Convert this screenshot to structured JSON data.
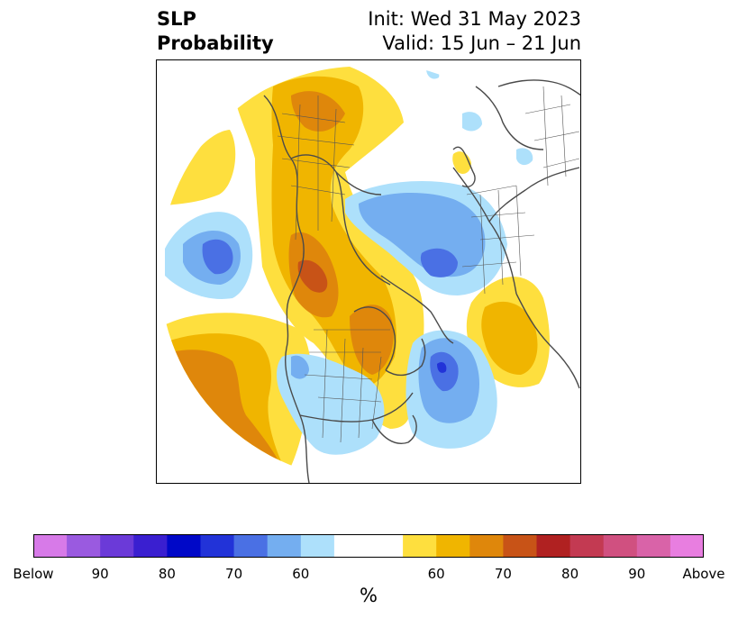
{
  "title": {
    "left_line1": "SLP",
    "left_line2": "Probability",
    "right_line1": "Init: Wed 31 May 2023",
    "right_line2": "Valid: 15 Jun – 21 Jun"
  },
  "colorbar": {
    "unit": "%",
    "colors": [
      "#d77ae8",
      "#9a5ae0",
      "#6b3ad8",
      "#3a1fd0",
      "#0008c8",
      "#2233d8",
      "#4a70e4",
      "#74aef0",
      "#ade0fb",
      "#ffffff",
      "#fedf3e",
      "#f0b500",
      "#df870b",
      "#c85317",
      "#b02121",
      "#c33a52",
      "#d05080",
      "#d963a8",
      "#e87ee0"
    ],
    "ticks": [
      "Below",
      "90",
      "80",
      "70",
      "60",
      "60",
      "70",
      "80",
      "90",
      "Above"
    ]
  },
  "palette": {
    "below_60": "#ade0fb",
    "below_70": "#74aef0",
    "below_80": "#4a70e4",
    "below_90": "#2233d8",
    "above_60": "#fedf3e",
    "above_70": "#f0b500",
    "above_80": "#df870b",
    "above_90": "#c85317",
    "coast": "#4a4a4a",
    "border": "#555555"
  }
}
